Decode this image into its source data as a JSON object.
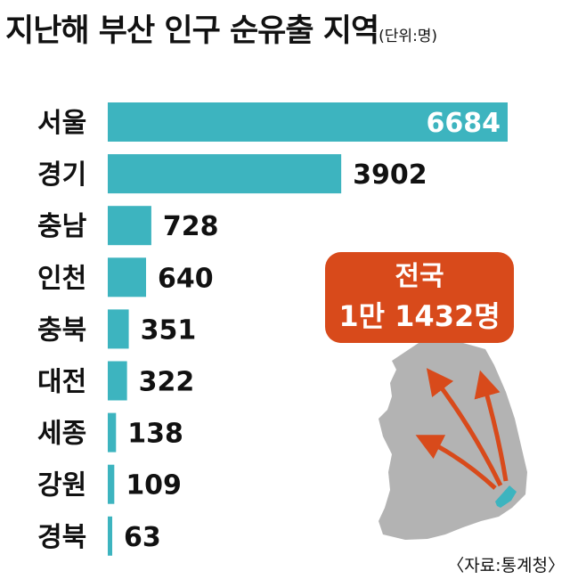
{
  "title": "지난해 부산 인구 순유출 지역",
  "unit": "(단위:명)",
  "callout": {
    "line1": "전국",
    "line2": "1만 1432명"
  },
  "source": "〈자료:통계청〉",
  "colors": {
    "bar": "#3db4bf",
    "callout": "#d84a1b",
    "map": "#b3b3b3",
    "busan": "#3db4bf",
    "arrow": "#d84a1b"
  },
  "chart_data": {
    "type": "bar",
    "orientation": "horizontal",
    "categories": [
      "서울",
      "경기",
      "충남",
      "인천",
      "충북",
      "대전",
      "세종",
      "강원",
      "경북"
    ],
    "values": [
      6684,
      3902,
      728,
      640,
      351,
      322,
      138,
      109,
      63
    ],
    "xlim": [
      0,
      6684
    ],
    "grid": false
  }
}
